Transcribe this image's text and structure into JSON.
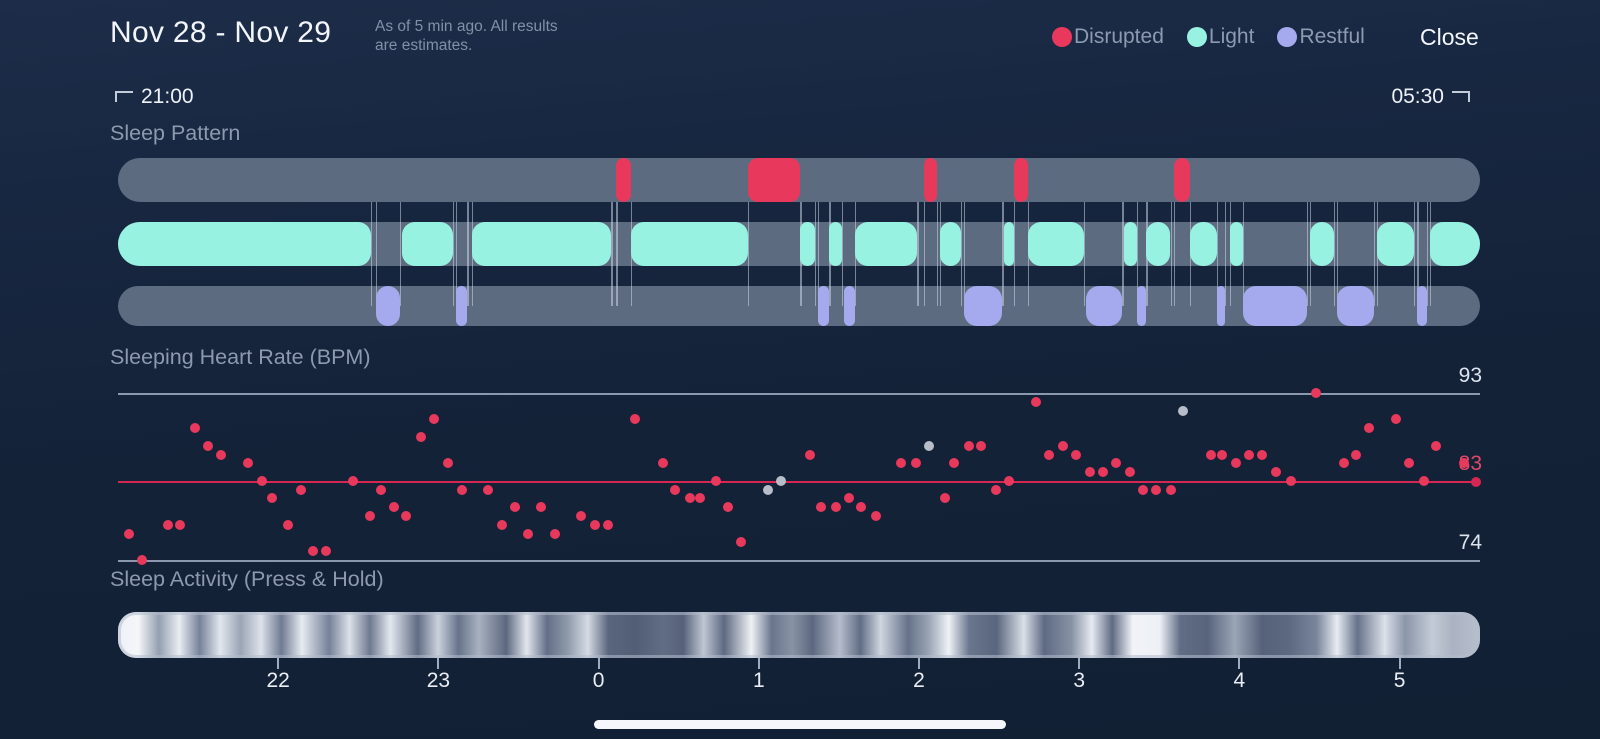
{
  "header": {
    "date_range": "Nov 28 - Nov 29",
    "as_of_line1": "As of 5 min ago. All results",
    "as_of_line2": "are estimates.",
    "close_label": "Close",
    "legend": [
      {
        "label": "Disrupted",
        "color": "#e8395d"
      },
      {
        "label": "Light",
        "color": "#97f2e1"
      },
      {
        "label": "Restful",
        "color": "#a5aaef"
      }
    ]
  },
  "time_window": {
    "start_label": "21:00",
    "end_label": "05:30"
  },
  "sections": {
    "sleep_pattern_title": "Sleep Pattern",
    "heart_rate_title": "Sleeping Heart Rate (BPM)",
    "activity_title": "Sleep Activity (Press & Hold)"
  },
  "colors": {
    "track_gray": "#5c6b80",
    "disrupted": "#e8395d",
    "light": "#97f2e1",
    "restful": "#a5aaef",
    "gridline": "#8b99ae",
    "avg_line": "#d62754",
    "dot_red": "#e8395d",
    "dot_gray": "#b7bdc9"
  },
  "chart_data": [
    {
      "type": "timeline",
      "title": "Sleep Pattern",
      "time_start_hour": 21.0,
      "time_end_hour": 29.5,
      "tracks": [
        {
          "name": "Disrupted",
          "color": "#e8395d",
          "segments": [
            [
              24.11,
              24.2
            ],
            [
              24.93,
              25.26
            ],
            [
              26.03,
              26.11
            ],
            [
              26.59,
              26.68
            ],
            [
              27.59,
              27.69
            ]
          ]
        },
        {
          "name": "Light",
          "color": "#97f2e1",
          "segments": [
            [
              21.0,
              22.58
            ],
            [
              22.77,
              23.09
            ],
            [
              23.21,
              24.08
            ],
            [
              24.2,
              24.93
            ],
            [
              25.26,
              25.35
            ],
            [
              25.44,
              25.52
            ],
            [
              25.6,
              25.99
            ],
            [
              26.13,
              26.26
            ],
            [
              26.53,
              26.59
            ],
            [
              26.68,
              27.03
            ],
            [
              27.28,
              27.36
            ],
            [
              27.42,
              27.57
            ],
            [
              27.69,
              27.86
            ],
            [
              27.94,
              28.02
            ],
            [
              28.44,
              28.59
            ],
            [
              28.86,
              29.09
            ],
            [
              29.19,
              29.5
            ]
          ]
        },
        {
          "name": "Restful",
          "color": "#a5aaef",
          "segments": [
            [
              22.61,
              22.76
            ],
            [
              23.11,
              23.18
            ],
            [
              25.37,
              25.44
            ],
            [
              25.53,
              25.6
            ],
            [
              26.28,
              26.52
            ],
            [
              27.04,
              27.27
            ],
            [
              27.36,
              27.42
            ],
            [
              27.86,
              27.91
            ],
            [
              28.02,
              28.42
            ],
            [
              28.61,
              28.84
            ],
            [
              29.11,
              29.17
            ]
          ]
        }
      ]
    },
    {
      "type": "scatter",
      "title": "Sleeping Heart Rate (BPM)",
      "ylim": [
        74,
        93
      ],
      "average_line": 83,
      "x_start_hour": 21.0,
      "x_end_hour": 29.5,
      "points": [
        [
          21.07,
          77
        ],
        [
          21.15,
          74
        ],
        [
          21.31,
          78
        ],
        [
          21.39,
          78
        ],
        [
          21.48,
          89
        ],
        [
          21.56,
          87
        ],
        [
          21.64,
          86
        ],
        [
          21.81,
          85
        ],
        [
          21.9,
          83
        ],
        [
          21.96,
          81
        ],
        [
          22.06,
          78
        ],
        [
          22.14,
          82
        ],
        [
          22.22,
          75
        ],
        [
          22.3,
          75
        ],
        [
          22.47,
          83
        ],
        [
          22.57,
          79
        ],
        [
          22.64,
          82
        ],
        [
          22.72,
          80
        ],
        [
          22.8,
          79
        ],
        [
          22.89,
          88
        ],
        [
          22.97,
          90
        ],
        [
          23.06,
          85
        ],
        [
          23.15,
          82
        ],
        [
          23.31,
          82
        ],
        [
          23.4,
          78
        ],
        [
          23.48,
          80
        ],
        [
          23.56,
          77
        ],
        [
          23.64,
          80
        ],
        [
          23.73,
          77
        ],
        [
          23.89,
          79
        ],
        [
          23.98,
          78
        ],
        [
          24.06,
          78
        ],
        [
          24.23,
          90
        ],
        [
          24.4,
          85
        ],
        [
          24.48,
          82
        ],
        [
          24.57,
          81
        ],
        [
          24.63,
          81
        ],
        [
          24.73,
          83
        ],
        [
          24.81,
          80
        ],
        [
          24.89,
          76
        ],
        [
          25.32,
          86
        ],
        [
          25.39,
          80
        ],
        [
          25.48,
          80
        ],
        [
          25.56,
          81
        ],
        [
          25.64,
          80
        ],
        [
          25.73,
          79
        ],
        [
          25.89,
          85
        ],
        [
          25.98,
          85
        ],
        [
          26.16,
          81
        ],
        [
          26.22,
          85
        ],
        [
          26.31,
          87
        ],
        [
          26.39,
          87
        ],
        [
          26.48,
          82
        ],
        [
          26.56,
          83
        ],
        [
          26.73,
          92
        ],
        [
          26.81,
          86
        ],
        [
          26.9,
          87
        ],
        [
          26.98,
          86
        ],
        [
          27.07,
          84
        ],
        [
          27.15,
          84
        ],
        [
          27.23,
          85
        ],
        [
          27.32,
          84
        ],
        [
          27.4,
          82
        ],
        [
          27.48,
          82
        ],
        [
          27.57,
          82
        ],
        [
          27.82,
          86
        ],
        [
          27.89,
          86
        ],
        [
          27.98,
          85
        ],
        [
          28.06,
          86
        ],
        [
          28.14,
          86
        ],
        [
          28.23,
          84
        ],
        [
          28.32,
          83
        ],
        [
          28.48,
          93
        ],
        [
          28.65,
          85
        ],
        [
          28.73,
          86
        ],
        [
          28.81,
          89
        ],
        [
          28.98,
          90
        ],
        [
          29.06,
          85
        ],
        [
          29.15,
          83
        ],
        [
          29.23,
          87
        ],
        [
          29.4,
          85
        ]
      ],
      "gray_points": [
        [
          25.06,
          82
        ],
        [
          25.14,
          83
        ],
        [
          26.06,
          87
        ],
        [
          27.65,
          91
        ]
      ]
    },
    {
      "type": "heatmap",
      "title": "Sleep Activity (Press & Hold)",
      "ticks_hours": [
        22,
        23,
        24,
        25,
        26,
        27,
        28,
        29
      ],
      "tick_labels": [
        "22",
        "23",
        "0",
        "1",
        "2",
        "3",
        "4",
        "5"
      ],
      "gradient_stops": [
        [
          0,
          "#eef1f6"
        ],
        [
          1.5,
          "#f4f6f9"
        ],
        [
          3,
          "#939fb0"
        ],
        [
          4.5,
          "#e9edf3"
        ],
        [
          6,
          "#76829a"
        ],
        [
          7.5,
          "#e2e7ee"
        ],
        [
          9,
          "#9aa5b5"
        ],
        [
          10.5,
          "#dde2ea"
        ],
        [
          12,
          "#6f7b92"
        ],
        [
          13.5,
          "#e7ebf1"
        ],
        [
          15.5,
          "#75819a"
        ],
        [
          17,
          "#dce1e9"
        ],
        [
          18.5,
          "#6d7990"
        ],
        [
          20,
          "#e4e8ef"
        ],
        [
          22,
          "#606c84"
        ],
        [
          23.5,
          "#cbd2dd"
        ],
        [
          25,
          "#66738b"
        ],
        [
          26.5,
          "#a8b1bf"
        ],
        [
          28.5,
          "#5c6880"
        ],
        [
          30,
          "#e2e6ed"
        ],
        [
          31.5,
          "#636f87"
        ],
        [
          33,
          "#8e99aa"
        ],
        [
          34.5,
          "#d5dbe4"
        ],
        [
          36,
          "#5a667e"
        ],
        [
          38,
          "#525e76"
        ],
        [
          40,
          "#616d85"
        ],
        [
          41.5,
          "#56627a"
        ],
        [
          43,
          "#bfc7d3"
        ],
        [
          44.5,
          "#5d6981"
        ],
        [
          46.5,
          "#eff2f6"
        ],
        [
          48,
          "#69758d"
        ],
        [
          49.5,
          "#8893a5"
        ],
        [
          51,
          "#5c6880"
        ],
        [
          53,
          "#b5bdcb"
        ],
        [
          54.5,
          "#616d85"
        ],
        [
          56,
          "#d0d6e0"
        ],
        [
          58,
          "#66728a"
        ],
        [
          59.5,
          "#98a3b3"
        ],
        [
          61,
          "#eff2f7"
        ],
        [
          62.5,
          "#6a768e"
        ],
        [
          64.5,
          "#59657d"
        ],
        [
          66.5,
          "#dae0e8"
        ],
        [
          68,
          "#5e6a82"
        ],
        [
          70,
          "#8692a4"
        ],
        [
          71.5,
          "#e6eaf1"
        ],
        [
          73,
          "#5f6b83"
        ],
        [
          74.5,
          "#f1f3f8"
        ],
        [
          76.5,
          "#edf0f5"
        ],
        [
          78,
          "#616d85"
        ],
        [
          80,
          "#58647c"
        ],
        [
          82,
          "#9aa5b6"
        ],
        [
          84,
          "#56627a"
        ],
        [
          86,
          "#5d6981"
        ],
        [
          88,
          "#79859b"
        ],
        [
          89.5,
          "#e8ecf2"
        ],
        [
          91,
          "#66728a"
        ],
        [
          93,
          "#dce1ea"
        ],
        [
          94.5,
          "#8b96a8"
        ],
        [
          96.5,
          "#c4cbd7"
        ],
        [
          98,
          "#aab3c2"
        ],
        [
          100,
          "#b7bfcd"
        ]
      ]
    }
  ]
}
